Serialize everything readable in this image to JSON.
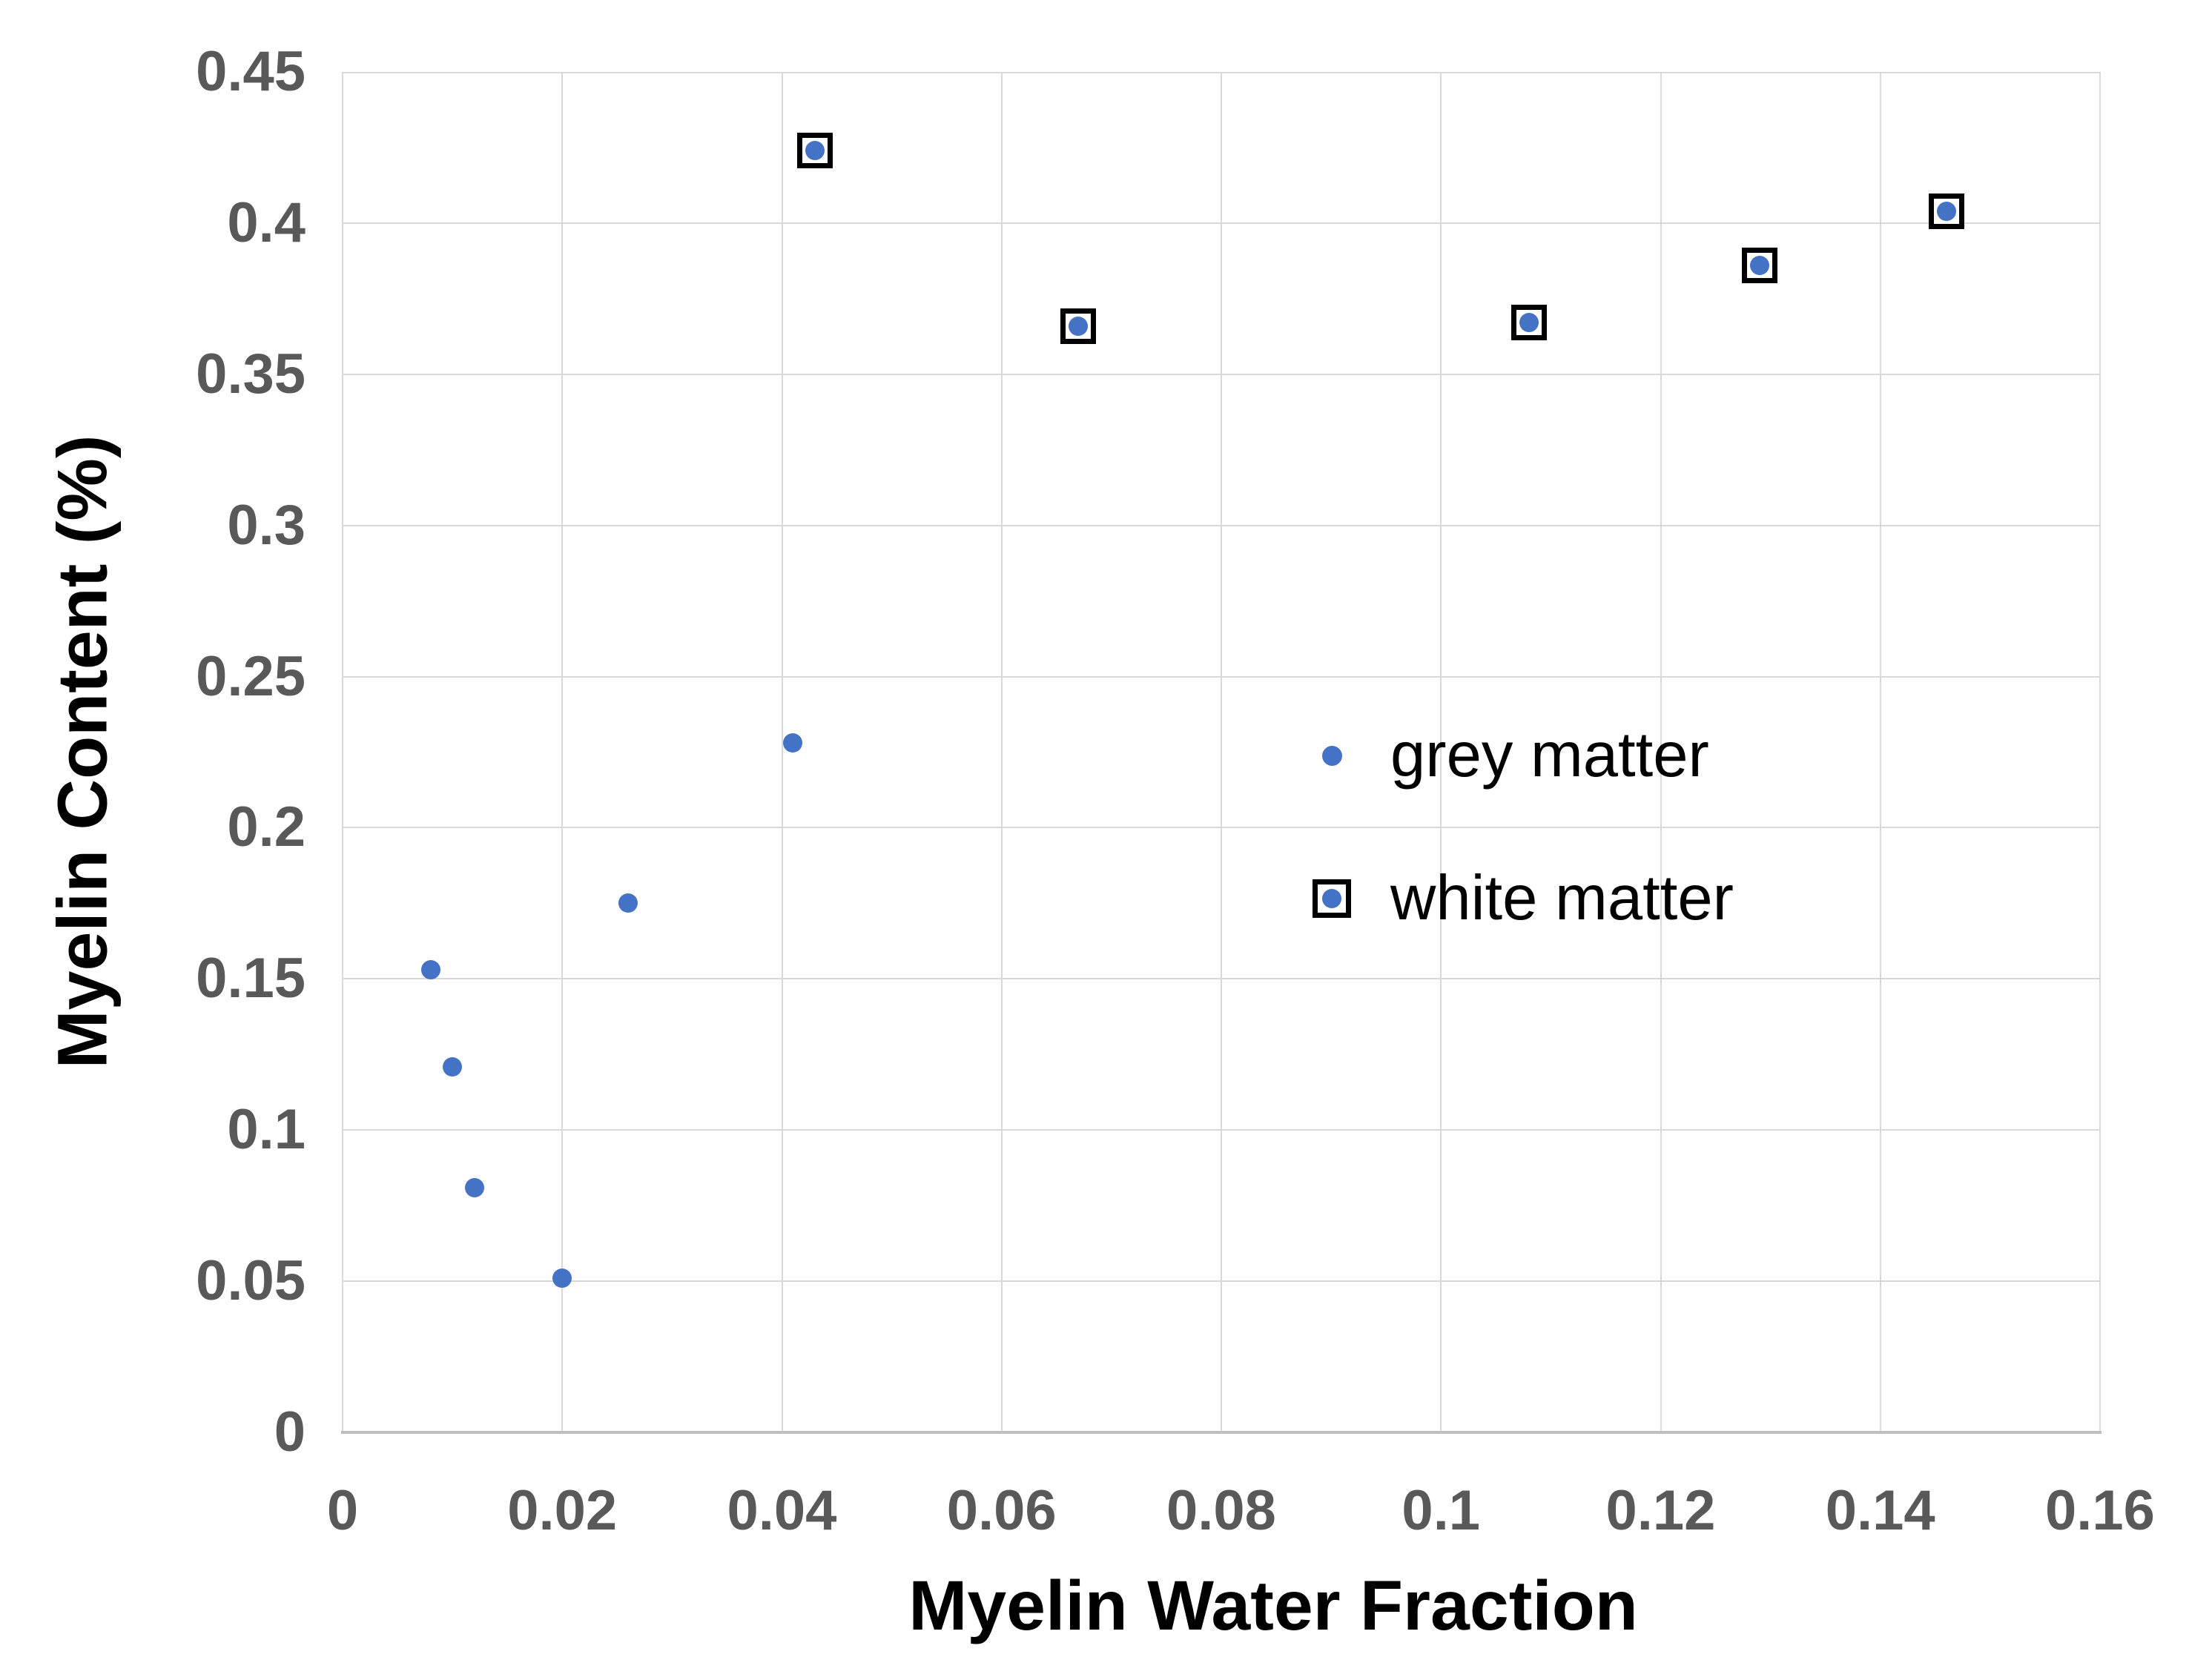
{
  "colors": {
    "marker_blue": "#4472C4",
    "marker_outline": "#000000",
    "gridline": "#D9D9D9",
    "axis_line": "#BFBFBF",
    "tick_label": "#595959",
    "axis_title": "#000000",
    "background": "#FFFFFF"
  },
  "chart_data": {
    "type": "scatter",
    "title": "",
    "xlabel": "Myelin Water Fraction",
    "ylabel": "Myelin Content (%)",
    "xlim": [
      0,
      0.16
    ],
    "ylim": [
      0,
      0.45
    ],
    "grid": true,
    "legend_position": "inside-center-right",
    "x_ticks": [
      0,
      0.02,
      0.04,
      0.06,
      0.08,
      0.1,
      0.12,
      0.14,
      0.16
    ],
    "x_tick_labels": [
      "0",
      "0.02",
      "0.04",
      "0.06",
      "0.08",
      "0.1",
      "0.12",
      "0.14",
      "0.16"
    ],
    "y_ticks": [
      0,
      0.05,
      0.1,
      0.15,
      0.2,
      0.25,
      0.3,
      0.35,
      0.4,
      0.45
    ],
    "y_tick_labels": [
      "0",
      "0.05",
      "0.1",
      "0.15",
      "0.2",
      "0.25",
      "0.3",
      "0.35",
      "0.4",
      "0.45"
    ],
    "series": [
      {
        "name": "grey matter",
        "marker": "dot",
        "color": "#4472C4",
        "points": [
          {
            "x": 0.008,
            "y": 0.153
          },
          {
            "x": 0.01,
            "y": 0.121
          },
          {
            "x": 0.012,
            "y": 0.081
          },
          {
            "x": 0.02,
            "y": 0.051
          },
          {
            "x": 0.026,
            "y": 0.175
          },
          {
            "x": 0.041,
            "y": 0.228
          }
        ]
      },
      {
        "name": "white matter",
        "marker": "dot-in-square",
        "color": "#4472C4",
        "outline_color": "#000000",
        "points": [
          {
            "x": 0.043,
            "y": 0.424
          },
          {
            "x": 0.067,
            "y": 0.366
          },
          {
            "x": 0.108,
            "y": 0.367
          },
          {
            "x": 0.129,
            "y": 0.386
          },
          {
            "x": 0.146,
            "y": 0.404
          }
        ]
      }
    ]
  }
}
